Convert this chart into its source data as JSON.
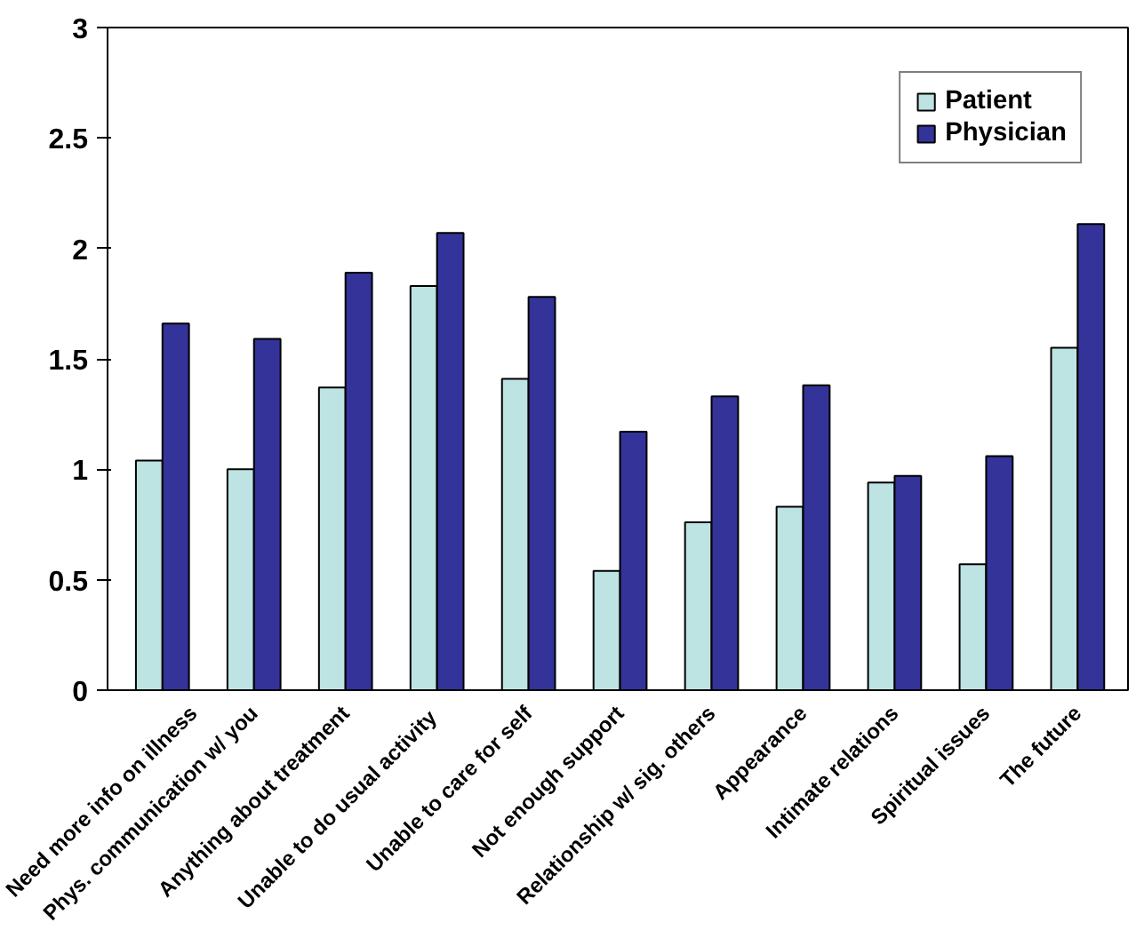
{
  "chart_data": {
    "type": "bar",
    "categories": [
      "Need more info on illness",
      "Phys. communication w/ you",
      "Anything about treatment",
      "Unable to do  usual activity",
      "Unable to care for self",
      "Not enough support",
      "Relationship w/ sig. others",
      "Appearance",
      "Intimate relations",
      "Spiritual issues",
      "The future"
    ],
    "series": [
      {
        "name": "Patient",
        "color": "#bde3e3",
        "values": [
          1.04,
          1.0,
          1.37,
          1.83,
          1.41,
          0.54,
          0.76,
          0.83,
          0.94,
          0.57,
          1.55
        ]
      },
      {
        "name": "Physician",
        "color": "#333399",
        "values": [
          1.66,
          1.59,
          1.89,
          2.07,
          1.78,
          1.17,
          1.33,
          1.38,
          0.97,
          1.06,
          2.11
        ]
      }
    ],
    "ylim": [
      0,
      3
    ],
    "yticks": [
      0,
      0.5,
      1,
      1.5,
      2,
      2.5,
      3
    ],
    "grid": false,
    "legend": "top right"
  }
}
